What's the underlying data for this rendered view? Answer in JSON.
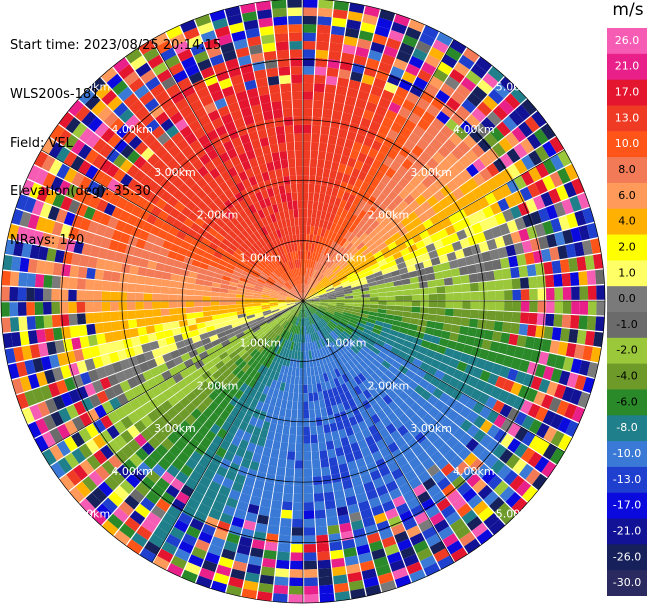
{
  "header": {
    "start_time": "Start time: 2023/08/25 20:14:15",
    "station": "WLS200s-181",
    "field": "Field: VEL",
    "elevation": "Elevation(deg): 35.30",
    "nrays": "NRays: 120"
  },
  "chart_data": {
    "type": "heatmap",
    "subtype": "polar-ppi",
    "field": "VEL",
    "units": "m/s",
    "nrays": 120,
    "range_rings": [
      {
        "label": "1.00km",
        "range_km": 1.0
      },
      {
        "label": "2.00km",
        "range_km": 2.0
      },
      {
        "label": "3.00km",
        "range_km": 3.0
      },
      {
        "label": "4.00km",
        "range_km": 4.0
      },
      {
        "label": "5.00km",
        "range_km": 5.0
      }
    ],
    "max_range_km": 5.0,
    "ring_label_directions": [
      "northwest",
      "northeast",
      "southwest",
      "southeast"
    ],
    "spoke_angles_deg": [
      0,
      30,
      60,
      90,
      120,
      150,
      180,
      210,
      240,
      270,
      300,
      330
    ],
    "colorbar": {
      "unit_label": "m/s",
      "ticks": [
        "26.0",
        "21.0",
        "17.0",
        "13.0",
        "10.0",
        "8.0",
        "6.0",
        "4.0",
        "2.0",
        "1.0",
        "0.0",
        "-1.0",
        "-2.0",
        "-4.0",
        "-6.0",
        "-8.0",
        "-10.0",
        "-13.0",
        "-17.0",
        "-21.0",
        "-26.0",
        "-30.0"
      ],
      "bands": [
        {
          "color": "#f75cb4"
        },
        {
          "color": "#e9208a"
        },
        {
          "color": "#e4162f"
        },
        {
          "color": "#f03b24"
        },
        {
          "color": "#ff5518"
        },
        {
          "color": "#f37a56"
        },
        {
          "color": "#ff9a5a"
        },
        {
          "color": "#ffb000"
        },
        {
          "color": "#ffff00"
        },
        {
          "color": "#ffff66"
        },
        {
          "color": "#7a7a7a"
        },
        {
          "color": "#6b6b6b"
        },
        {
          "color": "#9ac83a"
        },
        {
          "color": "#6e9a2a"
        },
        {
          "color": "#2a8a2a"
        },
        {
          "color": "#1f7f8a"
        },
        {
          "color": "#3a7ad6"
        },
        {
          "color": "#1f3fcf"
        },
        {
          "color": "#0a0adf"
        },
        {
          "color": "#121296"
        },
        {
          "color": "#16205a"
        },
        {
          "color": "#2a2a60"
        }
      ]
    },
    "velocity_pattern": {
      "max_positive_direction": "north-northwest",
      "max_negative_direction": "south-southeast",
      "zero_line_direction": "east-west",
      "near_range_min_m_s": -8,
      "near_range_max_m_s": 13,
      "noisy_beyond_km": 4.0
    }
  }
}
